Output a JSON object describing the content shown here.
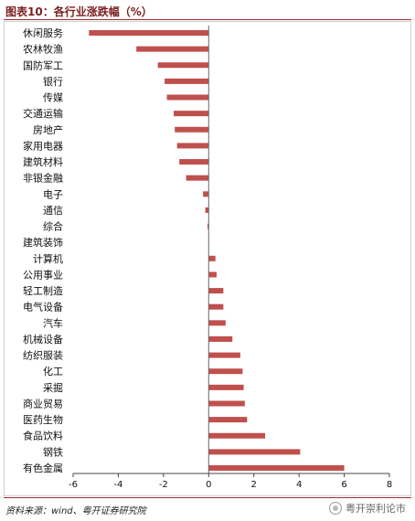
{
  "header": {
    "title": "图表10：各行业涨跌幅（%）"
  },
  "footer": {
    "source": "资料来源：wind、粤开证券研究院",
    "watermark": "粤开崇利论市",
    "watermark_icon": "wechat-icon"
  },
  "colors": {
    "bar": "#c0504d",
    "rule": "#9b2d2d"
  },
  "chart_data": {
    "type": "bar",
    "orientation": "horizontal",
    "title": "",
    "xlabel": "",
    "ylabel": "",
    "xlim": [
      -6,
      8
    ],
    "xticks": [
      -6,
      -4,
      -2,
      0,
      2,
      4,
      6,
      8
    ],
    "grid": false,
    "categories": [
      "休闲服务",
      "农林牧渔",
      "国防军工",
      "银行",
      "传媒",
      "交通运输",
      "房地产",
      "家用电器",
      "建筑材料",
      "非银金融",
      "电子",
      "通信",
      "综合",
      "建筑装饰",
      "计算机",
      "公用事业",
      "轻工制造",
      "电气设备",
      "汽车",
      "机械设备",
      "纺织服装",
      "化工",
      "采掘",
      "商业贸易",
      "医药生物",
      "食品饮料",
      "钢铁",
      "有色金属"
    ],
    "values": [
      -5.3,
      -3.2,
      -2.25,
      -1.95,
      -1.85,
      -1.55,
      -1.5,
      -1.4,
      -1.3,
      -1.0,
      -0.25,
      -0.15,
      -0.05,
      0.0,
      0.3,
      0.35,
      0.65,
      0.65,
      0.75,
      1.05,
      1.4,
      1.5,
      1.55,
      1.6,
      1.7,
      2.5,
      4.05,
      6.0
    ]
  }
}
